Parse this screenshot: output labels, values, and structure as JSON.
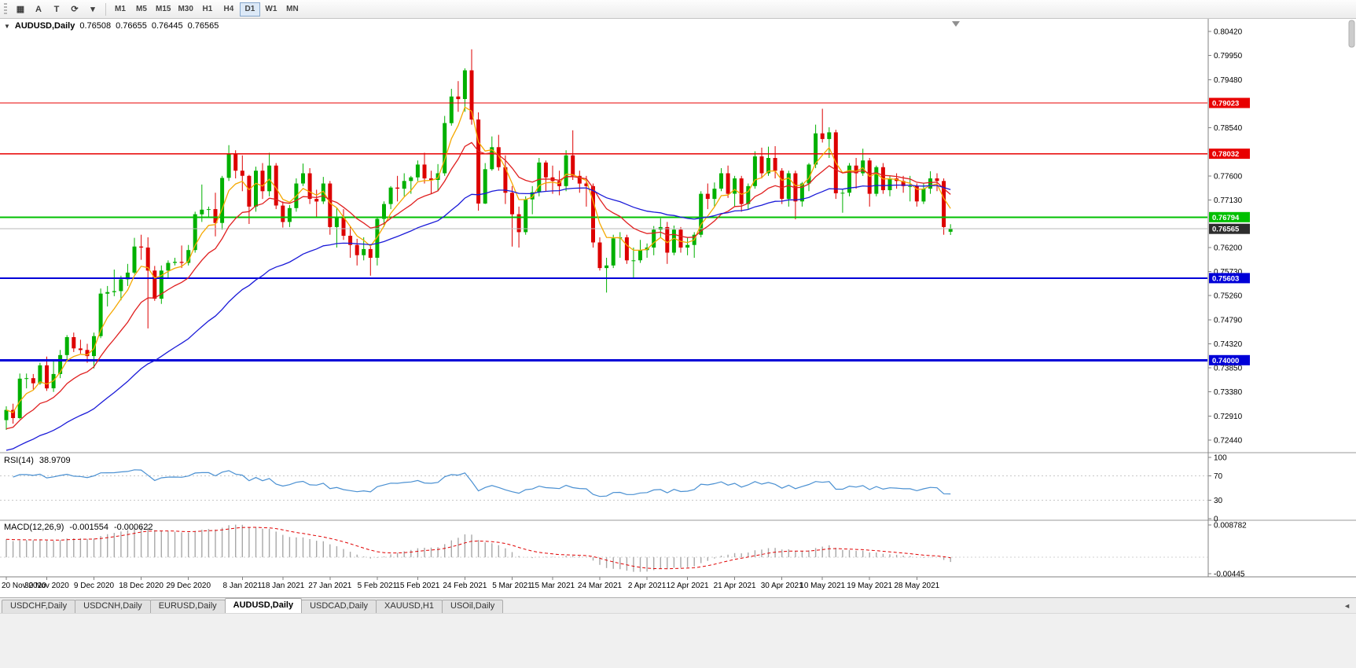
{
  "icons": {
    "collapse_arrow": "▼",
    "tab_scroll_left": "◄",
    "windows_grid": "▦",
    "insert_text": "A",
    "template": "T",
    "refresh": "⟳",
    "dropdown_caret": "▾"
  },
  "toolbar": {
    "tools": [
      {
        "name": "windows-grid",
        "glyph": "▦"
      },
      {
        "name": "insert-text",
        "glyph": "A"
      },
      {
        "name": "template",
        "glyph": "T"
      },
      {
        "name": "refresh",
        "glyph": "⟳"
      },
      {
        "name": "dropdown-caret",
        "glyph": "▾"
      }
    ],
    "timeframes": [
      "M1",
      "M5",
      "M15",
      "M30",
      "H1",
      "H4",
      "D1",
      "W1",
      "MN"
    ],
    "active_timeframe": "D1"
  },
  "chart_meta": {
    "title": "AUDUSD,Daily",
    "open": "0.76508",
    "high": "0.76655",
    "low": "0.76445",
    "close": "0.76565"
  },
  "chart_data": {
    "type": "candlestick",
    "symbol": "AUDUSD",
    "timeframe": "Daily",
    "price_axis": {
      "max": 0.8042,
      "min": 0.7244,
      "tick_labels": [
        "0.80420",
        "0.79950",
        "0.79480",
        "0.78540",
        "0.77600",
        "0.77130",
        "0.76200",
        "0.75730",
        "0.75260",
        "0.74790",
        "0.74320",
        "0.73850",
        "0.73380",
        "0.72910",
        "0.72440"
      ]
    },
    "hlines": [
      {
        "price": 0.79023,
        "label": "0.79023",
        "color": "#e80000",
        "width": 1.4
      },
      {
        "price": 0.78032,
        "label": "0.78032",
        "color": "#e80000",
        "width": 1.4
      },
      {
        "price": 0.76794,
        "label": "0.76794",
        "color": "#00c000",
        "width": 2
      },
      {
        "price": 0.75603,
        "label": "0.75603",
        "color": "#0000d8",
        "width": 2
      },
      {
        "price": 0.74,
        "label": "0.74000",
        "color": "#0000d8",
        "width": 3
      }
    ],
    "bid_line": {
      "price": 0.76565,
      "label": "0.76565",
      "line_color": "#b8b8b8",
      "tag_color": "#2e2e2e"
    },
    "moving_averages": [
      {
        "type": "ema",
        "period": 5,
        "seed": null,
        "color": "#f5a800"
      },
      {
        "type": "ema",
        "period": 13,
        "seed": 0.726,
        "color": "#e02020"
      },
      {
        "type": "ema",
        "period": 40,
        "seed": 0.722,
        "color": "#1a1ad8"
      }
    ],
    "colors": {
      "bull": "#00b000",
      "bear": "#dd0000"
    },
    "candles": [
      [
        0.7283,
        0.731,
        0.7264,
        0.7303
      ],
      [
        0.7303,
        0.7315,
        0.7276,
        0.7287
      ],
      [
        0.7287,
        0.7374,
        0.7285,
        0.7364
      ],
      [
        0.7364,
        0.7374,
        0.7345,
        0.7365
      ],
      [
        0.7365,
        0.7373,
        0.7343,
        0.7355
      ],
      [
        0.7355,
        0.7395,
        0.7352,
        0.739
      ],
      [
        0.739,
        0.7407,
        0.734,
        0.7345
      ],
      [
        0.7345,
        0.7398,
        0.7338,
        0.7373
      ],
      [
        0.7373,
        0.742,
        0.7365,
        0.741
      ],
      [
        0.741,
        0.7449,
        0.74,
        0.7445
      ],
      [
        0.7445,
        0.7454,
        0.7416,
        0.7423
      ],
      [
        0.7423,
        0.744,
        0.7413,
        0.742
      ],
      [
        0.742,
        0.7432,
        0.7395,
        0.7408
      ],
      [
        0.7408,
        0.7454,
        0.7384,
        0.7447
      ],
      [
        0.7447,
        0.754,
        0.7443,
        0.753
      ],
      [
        0.753,
        0.7545,
        0.7505,
        0.7533
      ],
      [
        0.7533,
        0.7577,
        0.7525,
        0.7535
      ],
      [
        0.7535,
        0.7565,
        0.7517,
        0.7558
      ],
      [
        0.7558,
        0.7588,
        0.7545,
        0.7571
      ],
      [
        0.7571,
        0.7639,
        0.7568,
        0.7622
      ],
      [
        0.7622,
        0.7645,
        0.7596,
        0.762
      ],
      [
        0.762,
        0.764,
        0.7462,
        0.7575
      ],
      [
        0.7575,
        0.7584,
        0.7516,
        0.752
      ],
      [
        0.752,
        0.7585,
        0.751,
        0.7575
      ],
      [
        0.7575,
        0.7595,
        0.756,
        0.759
      ],
      [
        0.759,
        0.76,
        0.7585,
        0.7592
      ],
      [
        0.7592,
        0.7624,
        0.758,
        0.759
      ],
      [
        0.759,
        0.7625,
        0.7585,
        0.7615
      ],
      [
        0.7615,
        0.769,
        0.761,
        0.7685
      ],
      [
        0.7685,
        0.7743,
        0.767,
        0.7694
      ],
      [
        0.7694,
        0.77,
        0.768,
        0.7695
      ],
      [
        0.7695,
        0.7727,
        0.7642,
        0.7668
      ],
      [
        0.7668,
        0.776,
        0.7655,
        0.7756
      ],
      [
        0.7756,
        0.782,
        0.775,
        0.7803
      ],
      [
        0.7803,
        0.781,
        0.7755,
        0.777
      ],
      [
        0.777,
        0.78,
        0.773,
        0.776
      ],
      [
        0.776,
        0.7762,
        0.7666,
        0.77
      ],
      [
        0.77,
        0.7778,
        0.769,
        0.777
      ],
      [
        0.777,
        0.7785,
        0.7715,
        0.773
      ],
      [
        0.773,
        0.7805,
        0.772,
        0.778
      ],
      [
        0.778,
        0.7785,
        0.7695,
        0.7702
      ],
      [
        0.7702,
        0.771,
        0.7659,
        0.767
      ],
      [
        0.767,
        0.7703,
        0.766,
        0.7697
      ],
      [
        0.7697,
        0.7755,
        0.769,
        0.7745
      ],
      [
        0.7745,
        0.7784,
        0.774,
        0.7765
      ],
      [
        0.7765,
        0.7775,
        0.7705,
        0.7715
      ],
      [
        0.7715,
        0.7733,
        0.768,
        0.771
      ],
      [
        0.771,
        0.7758,
        0.7705,
        0.7745
      ],
      [
        0.7745,
        0.775,
        0.7645,
        0.766
      ],
      [
        0.766,
        0.7698,
        0.762,
        0.768
      ],
      [
        0.768,
        0.7695,
        0.7635,
        0.7643
      ],
      [
        0.7643,
        0.7662,
        0.76,
        0.7625
      ],
      [
        0.7625,
        0.7637,
        0.7585,
        0.7605
      ],
      [
        0.7605,
        0.764,
        0.7595,
        0.7617
      ],
      [
        0.7617,
        0.7625,
        0.7565,
        0.76
      ],
      [
        0.76,
        0.768,
        0.7585,
        0.7676
      ],
      [
        0.7676,
        0.771,
        0.766,
        0.7705
      ],
      [
        0.7705,
        0.774,
        0.7695,
        0.7737
      ],
      [
        0.7737,
        0.776,
        0.771,
        0.7735
      ],
      [
        0.7735,
        0.7765,
        0.772,
        0.775
      ],
      [
        0.775,
        0.776,
        0.7725,
        0.7757
      ],
      [
        0.7757,
        0.779,
        0.775,
        0.7782
      ],
      [
        0.7782,
        0.7805,
        0.7745,
        0.7755
      ],
      [
        0.7755,
        0.777,
        0.7725,
        0.7752
      ],
      [
        0.7752,
        0.7783,
        0.773,
        0.7765
      ],
      [
        0.7765,
        0.7877,
        0.776,
        0.7863
      ],
      [
        0.7863,
        0.793,
        0.7858,
        0.7915
      ],
      [
        0.7915,
        0.7945,
        0.7885,
        0.791
      ],
      [
        0.791,
        0.797,
        0.7885,
        0.7966
      ],
      [
        0.7966,
        0.8007,
        0.786,
        0.787
      ],
      [
        0.787,
        0.7884,
        0.7692,
        0.7706
      ],
      [
        0.7706,
        0.7785,
        0.7705,
        0.7773
      ],
      [
        0.7773,
        0.7837,
        0.777,
        0.7816
      ],
      [
        0.7816,
        0.784,
        0.777,
        0.7777
      ],
      [
        0.7777,
        0.78,
        0.7705,
        0.7727
      ],
      [
        0.7727,
        0.774,
        0.7622,
        0.7685
      ],
      [
        0.7685,
        0.77,
        0.762,
        0.765
      ],
      [
        0.765,
        0.772,
        0.7645,
        0.7714
      ],
      [
        0.7714,
        0.774,
        0.7685,
        0.7728
      ],
      [
        0.7728,
        0.7795,
        0.772,
        0.7786
      ],
      [
        0.7786,
        0.779,
        0.773,
        0.7757
      ],
      [
        0.7757,
        0.778,
        0.7725,
        0.775
      ],
      [
        0.775,
        0.777,
        0.7722,
        0.774
      ],
      [
        0.774,
        0.781,
        0.773,
        0.78
      ],
      [
        0.78,
        0.7849,
        0.7752,
        0.776
      ],
      [
        0.776,
        0.777,
        0.7727,
        0.7745
      ],
      [
        0.7745,
        0.776,
        0.77,
        0.774
      ],
      [
        0.774,
        0.7745,
        0.762,
        0.763
      ],
      [
        0.763,
        0.764,
        0.7575,
        0.758
      ],
      [
        0.758,
        0.76,
        0.7532,
        0.7585
      ],
      [
        0.7585,
        0.7645,
        0.758,
        0.7638
      ],
      [
        0.7638,
        0.765,
        0.76,
        0.764
      ],
      [
        0.764,
        0.7645,
        0.7588,
        0.7595
      ],
      [
        0.7595,
        0.762,
        0.756,
        0.7595
      ],
      [
        0.7595,
        0.7635,
        0.759,
        0.7615
      ],
      [
        0.7615,
        0.7628,
        0.76,
        0.762
      ],
      [
        0.762,
        0.7662,
        0.7605,
        0.7655
      ],
      [
        0.7655,
        0.7677,
        0.764,
        0.766
      ],
      [
        0.766,
        0.767,
        0.7588,
        0.761
      ],
      [
        0.761,
        0.7663,
        0.7605,
        0.7655
      ],
      [
        0.7655,
        0.766,
        0.761,
        0.762
      ],
      [
        0.762,
        0.764,
        0.7605,
        0.7625
      ],
      [
        0.7625,
        0.765,
        0.76,
        0.7645
      ],
      [
        0.7645,
        0.773,
        0.764,
        0.7725
      ],
      [
        0.7725,
        0.7745,
        0.7695,
        0.7715
      ],
      [
        0.7715,
        0.7747,
        0.77,
        0.7735
      ],
      [
        0.7735,
        0.7775,
        0.773,
        0.7765
      ],
      [
        0.7765,
        0.778,
        0.7717,
        0.7725
      ],
      [
        0.7725,
        0.776,
        0.77,
        0.7755
      ],
      [
        0.7755,
        0.776,
        0.769,
        0.7705
      ],
      [
        0.7705,
        0.7745,
        0.7695,
        0.774
      ],
      [
        0.774,
        0.7808,
        0.7735,
        0.7798
      ],
      [
        0.7798,
        0.7815,
        0.7755,
        0.7765
      ],
      [
        0.7765,
        0.7817,
        0.776,
        0.7795
      ],
      [
        0.7795,
        0.7818,
        0.7755,
        0.777
      ],
      [
        0.777,
        0.7775,
        0.7705,
        0.7715
      ],
      [
        0.7715,
        0.777,
        0.77,
        0.7765
      ],
      [
        0.7765,
        0.777,
        0.7675,
        0.771
      ],
      [
        0.771,
        0.7748,
        0.77,
        0.7745
      ],
      [
        0.7745,
        0.7785,
        0.773,
        0.7782
      ],
      [
        0.7782,
        0.786,
        0.7775,
        0.7843
      ],
      [
        0.7843,
        0.7891,
        0.7825,
        0.7832
      ],
      [
        0.7832,
        0.7855,
        0.7795,
        0.7845
      ],
      [
        0.7845,
        0.785,
        0.7715,
        0.7726
      ],
      [
        0.7726,
        0.7735,
        0.7688,
        0.7727
      ],
      [
        0.7727,
        0.7785,
        0.772,
        0.778
      ],
      [
        0.778,
        0.7795,
        0.7735,
        0.7765
      ],
      [
        0.7765,
        0.7813,
        0.776,
        0.779
      ],
      [
        0.779,
        0.7795,
        0.77,
        0.7725
      ],
      [
        0.7725,
        0.778,
        0.772,
        0.7777
      ],
      [
        0.7777,
        0.7785,
        0.7725,
        0.7732
      ],
      [
        0.7732,
        0.776,
        0.772,
        0.7755
      ],
      [
        0.7755,
        0.7765,
        0.7735,
        0.775
      ],
      [
        0.775,
        0.776,
        0.7727,
        0.774
      ],
      [
        0.774,
        0.776,
        0.771,
        0.774
      ],
      [
        0.774,
        0.7745,
        0.77,
        0.771
      ],
      [
        0.771,
        0.7745,
        0.7705,
        0.7735
      ],
      [
        0.7735,
        0.7769,
        0.7725,
        0.7755
      ],
      [
        0.7755,
        0.7765,
        0.773,
        0.775
      ],
      [
        0.775,
        0.7755,
        0.7645,
        0.766
      ],
      [
        0.76508,
        0.76655,
        0.76445,
        0.76565
      ]
    ],
    "date_ticks": [
      {
        "i": 0,
        "label": "20 Nov 2020"
      },
      {
        "i": 6,
        "label": "30 Nov 2020"
      },
      {
        "i": 13,
        "label": "9 Dec 2020"
      },
      {
        "i": 20,
        "label": "18 Dec 2020"
      },
      {
        "i": 27,
        "label": "29 Dec 2020"
      },
      {
        "i": 35,
        "label": "8 Jan 2021"
      },
      {
        "i": 41,
        "label": "18 Jan 2021"
      },
      {
        "i": 48,
        "label": "27 Jan 2021"
      },
      {
        "i": 55,
        "label": "5 Feb 2021"
      },
      {
        "i": 61,
        "label": "15 Feb 2021"
      },
      {
        "i": 68,
        "label": "24 Feb 2021"
      },
      {
        "i": 75,
        "label": "5 Mar 2021"
      },
      {
        "i": 81,
        "label": "15 Mar 2021"
      },
      {
        "i": 88,
        "label": "24 Mar 2021"
      },
      {
        "i": 95,
        "label": "2 Apr 2021"
      },
      {
        "i": 101,
        "label": "12 Apr 2021"
      },
      {
        "i": 108,
        "label": "21 Apr 2021"
      },
      {
        "i": 115,
        "label": "30 Apr 2021"
      },
      {
        "i": 121,
        "label": "10 May 2021"
      },
      {
        "i": 128,
        "label": "19 May 2021"
      },
      {
        "i": 135,
        "label": "28 May 2021"
      }
    ],
    "indicators": {
      "rsi": {
        "label": "RSI(14)",
        "value_text": "38.9709",
        "period": 14,
        "seed_gain": 0.003,
        "seed_loss": 0.0013,
        "levels": [
          70,
          30
        ],
        "axis_labels": [
          "100",
          "70",
          "30",
          "0"
        ],
        "line_color": "#4a90d2"
      },
      "macd": {
        "label": "MACD(12,26,9)",
        "value_text": "-0.001554",
        "signal_text": "-0.000622",
        "fast": 12,
        "slow": 26,
        "signal": 9,
        "fast_seed": null,
        "slow_seed": 0.725,
        "scale_max": 0.008782,
        "scale_min": -0.00445,
        "axis_labels": [
          "0.008782",
          "-0.00445"
        ],
        "hist_color": "#a8a8a8",
        "signal_color": "#e00000"
      }
    }
  },
  "tabs": {
    "items": [
      "USDCHF,Daily",
      "USDCNH,Daily",
      "EURUSD,Daily",
      "AUDUSD,Daily",
      "USDCAD,Daily",
      "XAUUSD,H1",
      "USOil,Daily"
    ],
    "active": "AUDUSD,Daily"
  }
}
